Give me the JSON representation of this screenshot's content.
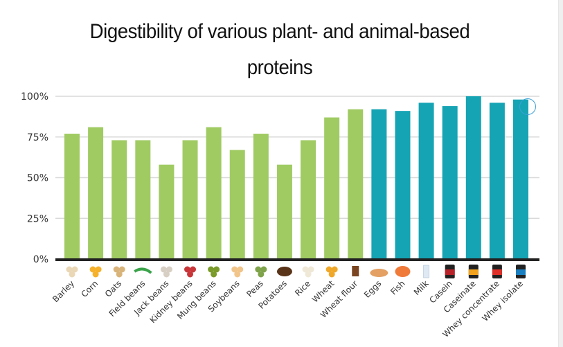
{
  "chart_data": {
    "type": "bar",
    "title": "Digestibility of various plant- and animal-based proteins",
    "title_lines": [
      "Digestibility of various plant- and animal-based",
      "proteins"
    ],
    "xlabel": "",
    "ylabel": "",
    "ylim": [
      0,
      1
    ],
    "yticks": [
      0,
      0.25,
      0.5,
      0.75,
      1.0
    ],
    "ytick_labels": [
      "0%",
      "25%",
      "50%",
      "75%",
      "100%"
    ],
    "grid": true,
    "legend": "none",
    "categories": [
      "Barley",
      "Corn",
      "Oats",
      "Field beans",
      "Jack beans",
      "Kidney beans",
      "Mung beans",
      "Soybeans",
      "Peas",
      "Potatoes",
      "Rice",
      "Wheat",
      "Wheat flour",
      "Eggs",
      "Fish",
      "Milk",
      "Casein",
      "Caseinate",
      "Whey concentrate",
      "Whey isolate"
    ],
    "groups": [
      "plant",
      "plant",
      "plant",
      "plant",
      "plant",
      "plant",
      "plant",
      "plant",
      "plant",
      "plant",
      "plant",
      "plant",
      "plant",
      "animal",
      "animal",
      "animal",
      "animal",
      "animal",
      "animal",
      "animal"
    ],
    "values": [
      0.77,
      0.81,
      0.73,
      0.73,
      0.58,
      0.73,
      0.81,
      0.67,
      0.77,
      0.58,
      0.73,
      0.87,
      0.92,
      0.92,
      0.91,
      0.96,
      0.94,
      1.0,
      0.96,
      0.98
    ],
    "icons": [
      "barley-grain-icon",
      "corn-kernel-icon",
      "oats-grain-icon",
      "field-bean-pod-icon",
      "jack-bean-icon",
      "kidney-bean-icon",
      "mung-bean-icon",
      "soybean-icon",
      "pea-icon",
      "potato-icon",
      "rice-icon",
      "wheat-icon",
      "wheat-flour-bag-icon",
      "eggs-carton-icon",
      "fish-steak-icon",
      "milk-carton-icon",
      "casein-tub-icon",
      "caseinate-tub-icon",
      "whey-concentrate-tub-icon",
      "whey-isolate-tub-icon"
    ],
    "colors": {
      "plant": "#a0cb63",
      "animal": "#15a4b4",
      "axis": "#222222",
      "grid": "#d9d9d9"
    }
  }
}
